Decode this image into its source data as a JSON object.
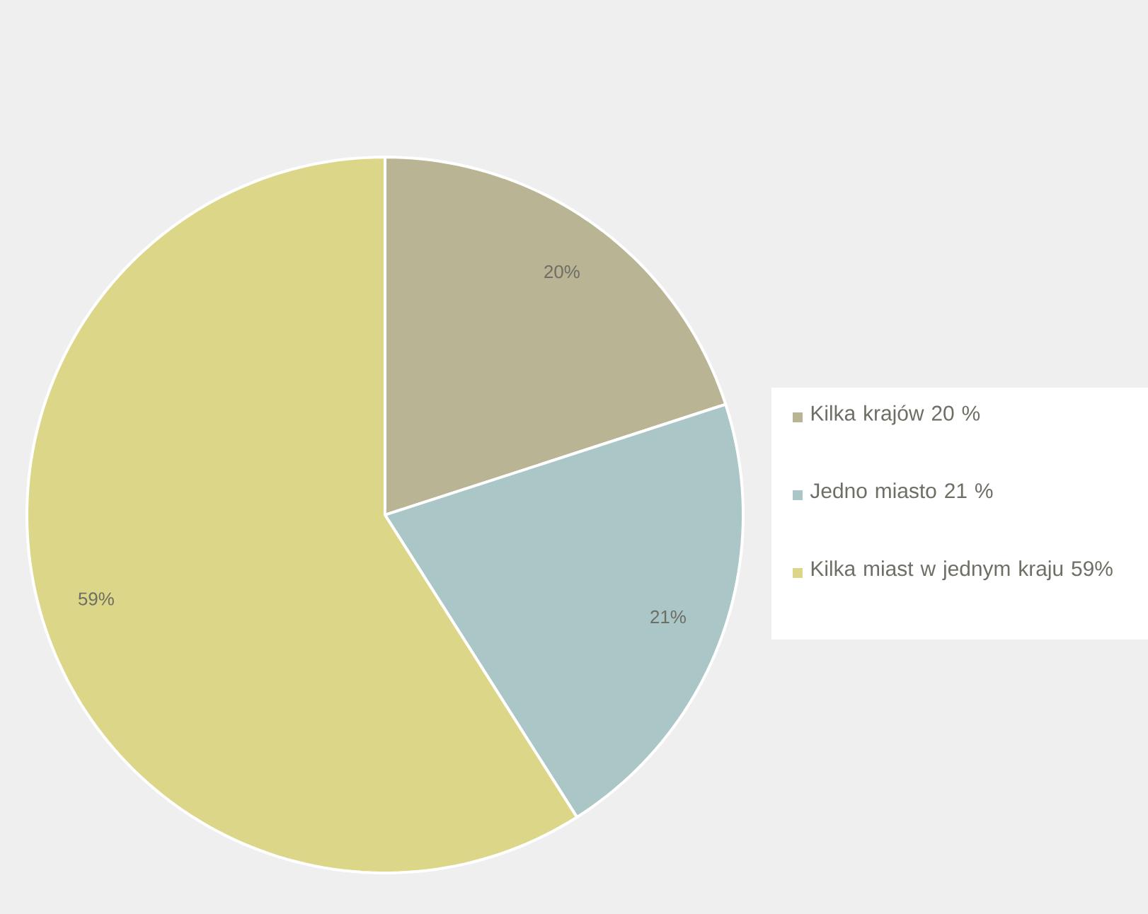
{
  "chart_data": {
    "type": "pie",
    "categories": [
      "Kilka krajów 20 %",
      "Jedno miasto 21 %",
      "Kilka miast w jednym kraju 59%"
    ],
    "values": [
      20,
      21,
      59
    ],
    "colors": [
      "#b9b494",
      "#aac6c6",
      "#dcd688"
    ],
    "value_labels": [
      "20%",
      "21%",
      "59%"
    ],
    "legend": "right"
  }
}
